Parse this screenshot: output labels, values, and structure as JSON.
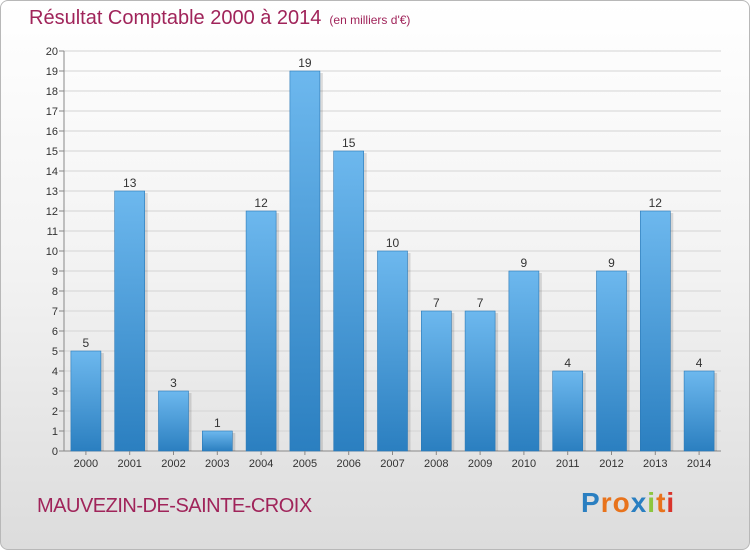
{
  "chart_data": {
    "type": "bar",
    "title": "Résultat Comptable 2000 à 2014",
    "subtitle": "(en milliers d'€)",
    "categories": [
      "2000",
      "2001",
      "2002",
      "2003",
      "2004",
      "2005",
      "2006",
      "2007",
      "2008",
      "2009",
      "2010",
      "2011",
      "2012",
      "2013",
      "2014"
    ],
    "values": [
      5,
      13,
      3,
      1,
      12,
      19,
      15,
      10,
      7,
      7,
      9,
      4,
      9,
      12,
      4
    ],
    "xlabel": "",
    "ylabel": "",
    "ylim": [
      0,
      20
    ],
    "yticks": [
      0,
      1,
      2,
      3,
      4,
      5,
      6,
      7,
      8,
      9,
      10,
      11,
      12,
      13,
      14,
      15,
      16,
      17,
      18,
      19,
      20
    ],
    "grid": true,
    "colors": {
      "bar_light": "#6db8ee",
      "bar_dark": "#2b7fc0",
      "title": "#a0245a"
    }
  },
  "footer": {
    "commune": "MAUVEZIN-DE-SAINTE-CROIX"
  },
  "logo": {
    "letters": [
      "P",
      "r",
      "o",
      "x",
      "i",
      "t",
      "i"
    ],
    "colors": [
      "#2a7fc1",
      "#e8731c",
      "#e8731c",
      "#2a7fc1",
      "#8cc63f",
      "#e8731c",
      "#d9342b"
    ]
  }
}
